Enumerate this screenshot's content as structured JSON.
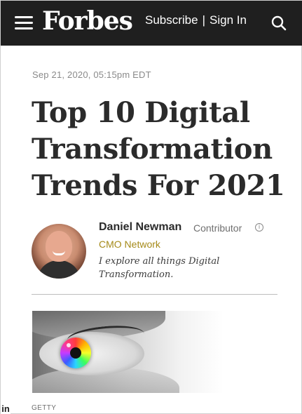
{
  "header": {
    "logo_text": "Forbes",
    "subscribe_label": "Subscribe",
    "separator": "|",
    "signin_label": "Sign In",
    "background": "#1f1f1f",
    "icons": {
      "menu": "hamburger-menu-icon",
      "search": "search-icon"
    }
  },
  "article": {
    "date": "Sep 21, 2020, 05:15pm EDT",
    "title_lines": [
      "Top 10 Digital",
      "Transformation",
      "Trends For 2021"
    ],
    "author": {
      "name": "Daniel Newman",
      "role": "Contributor",
      "network": "CMO Network",
      "bio_lines": [
        "I explore all things Digital",
        "Transformation."
      ],
      "network_color": "#a58a19"
    },
    "image": {
      "caption": "GETTY"
    }
  },
  "social": {
    "linkedin_label": "in"
  }
}
